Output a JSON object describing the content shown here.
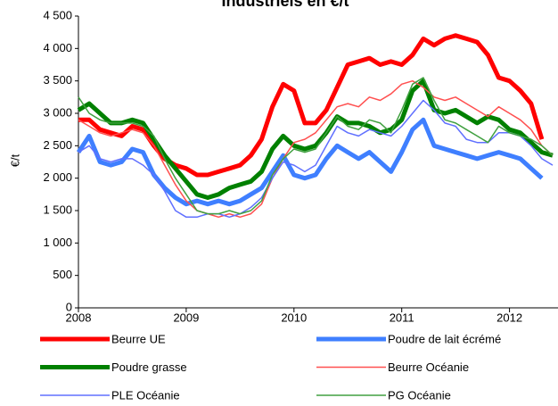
{
  "chart_data": {
    "type": "line",
    "title": "Industriels en €/t",
    "y_label": "€/t",
    "x": [
      2008.0,
      2008.1,
      2008.2,
      2008.3,
      2008.4,
      2008.5,
      2008.6,
      2008.7,
      2008.8,
      2008.9,
      2009.0,
      2009.1,
      2009.2,
      2009.3,
      2009.4,
      2009.5,
      2009.6,
      2009.7,
      2009.8,
      2009.9,
      2010.0,
      2010.1,
      2010.2,
      2010.3,
      2010.4,
      2010.5,
      2010.6,
      2010.7,
      2010.8,
      2010.9,
      2011.0,
      2011.1,
      2011.2,
      2011.3,
      2011.4,
      2011.5,
      2011.6,
      2011.7,
      2011.8,
      2011.9,
      2012.0,
      2012.1,
      2012.2,
      2012.3,
      2012.4
    ],
    "xlim": [
      2008,
      2012.45
    ],
    "xticks": [
      2008,
      2009,
      2010,
      2011,
      2012
    ],
    "ylim": [
      0,
      4500
    ],
    "yticks": [
      0,
      500,
      {
        "value": 1000,
        "label": "1 000"
      },
      {
        "value": 1500,
        "label": "1 500"
      },
      {
        "value": 2000,
        "label": "2 000"
      },
      {
        "value": 2500,
        "label": "2 500"
      },
      {
        "value": 3000,
        "label": "3 000"
      },
      {
        "value": 3500,
        "label": "3 500"
      },
      {
        "value": 4000,
        "label": "4 000"
      },
      {
        "value": 4500,
        "label": "4 500"
      }
    ],
    "series": [
      {
        "name": "Beurre UE",
        "color": "#ff0000",
        "width": 5,
        "values": [
          2900,
          2900,
          2750,
          2700,
          2650,
          2800,
          2750,
          2500,
          2300,
          2200,
          2150,
          2050,
          2050,
          2100,
          2150,
          2200,
          2350,
          2600,
          3100,
          3450,
          3350,
          2850,
          2850,
          3050,
          3400,
          3750,
          3800,
          3850,
          3750,
          3800,
          3750,
          3900,
          4150,
          4050,
          4150,
          4200,
          4150,
          4100,
          3900,
          3550,
          3500,
          3350,
          3150,
          2600,
          null
        ]
      },
      {
        "name": "Poudre de lait écrémé",
        "color": "#3f7fff",
        "width": 5,
        "values": [
          2400,
          2650,
          2250,
          2200,
          2250,
          2450,
          2400,
          2050,
          1850,
          1700,
          1600,
          1650,
          1600,
          1650,
          1600,
          1650,
          1750,
          1850,
          2100,
          2350,
          2050,
          2000,
          2050,
          2300,
          2500,
          2400,
          2300,
          2400,
          2250,
          2100,
          2400,
          2750,
          2900,
          2500,
          2450,
          2400,
          2350,
          2300,
          2350,
          2400,
          2350,
          2300,
          2150,
          2000,
          null
        ]
      },
      {
        "name": "Poudre grasse",
        "color": "#008000",
        "width": 5,
        "values": [
          3050,
          3150,
          3000,
          2850,
          2850,
          2900,
          2850,
          2600,
          2350,
          2150,
          1950,
          1750,
          1700,
          1750,
          1850,
          1900,
          1950,
          2100,
          2450,
          2650,
          2500,
          2450,
          2500,
          2700,
          2950,
          2850,
          2850,
          2800,
          2700,
          2750,
          2900,
          3350,
          3500,
          3050,
          3000,
          3050,
          2950,
          2850,
          2950,
          2900,
          2750,
          2700,
          2550,
          2400,
          2350
        ]
      },
      {
        "name": "Beurre Océanie",
        "color": "#ff5050",
        "width": 1.5,
        "values": [
          2900,
          2800,
          2700,
          2650,
          2700,
          2750,
          2700,
          2500,
          2200,
          1900,
          1650,
          1500,
          1450,
          1400,
          1450,
          1400,
          1450,
          1600,
          2000,
          2300,
          2550,
          2600,
          2700,
          2900,
          3100,
          3150,
          3100,
          3250,
          3200,
          3300,
          3450,
          3500,
          3400,
          3250,
          3200,
          3250,
          3150,
          3050,
          2950,
          3100,
          3000,
          2900,
          2750,
          2500,
          2350
        ]
      },
      {
        "name": "PLE Océanie",
        "color": "#6070ff",
        "width": 1.5,
        "values": [
          2400,
          2500,
          2300,
          2250,
          2300,
          2300,
          2200,
          2050,
          1800,
          1500,
          1400,
          1400,
          1450,
          1450,
          1400,
          1450,
          1550,
          1700,
          2000,
          2250,
          2200,
          2100,
          2200,
          2500,
          2800,
          2700,
          2650,
          2750,
          2700,
          2650,
          2800,
          3000,
          3200,
          3050,
          2850,
          2800,
          2600,
          2550,
          2550,
          2700,
          2700,
          2650,
          2500,
          2300,
          2200
        ]
      },
      {
        "name": "PG Océanie",
        "color": "#40a040",
        "width": 1.5,
        "values": [
          3250,
          3000,
          2900,
          2850,
          2850,
          2850,
          2800,
          2650,
          2300,
          2000,
          1750,
          1500,
          1450,
          1450,
          1500,
          1450,
          1500,
          1650,
          2050,
          2300,
          2450,
          2400,
          2450,
          2700,
          2950,
          2800,
          2750,
          2900,
          2850,
          2700,
          3050,
          3450,
          3550,
          3200,
          2900,
          2850,
          2750,
          2650,
          2550,
          2800,
          2700,
          2650,
          2600,
          2500,
          2350
        ]
      }
    ]
  }
}
